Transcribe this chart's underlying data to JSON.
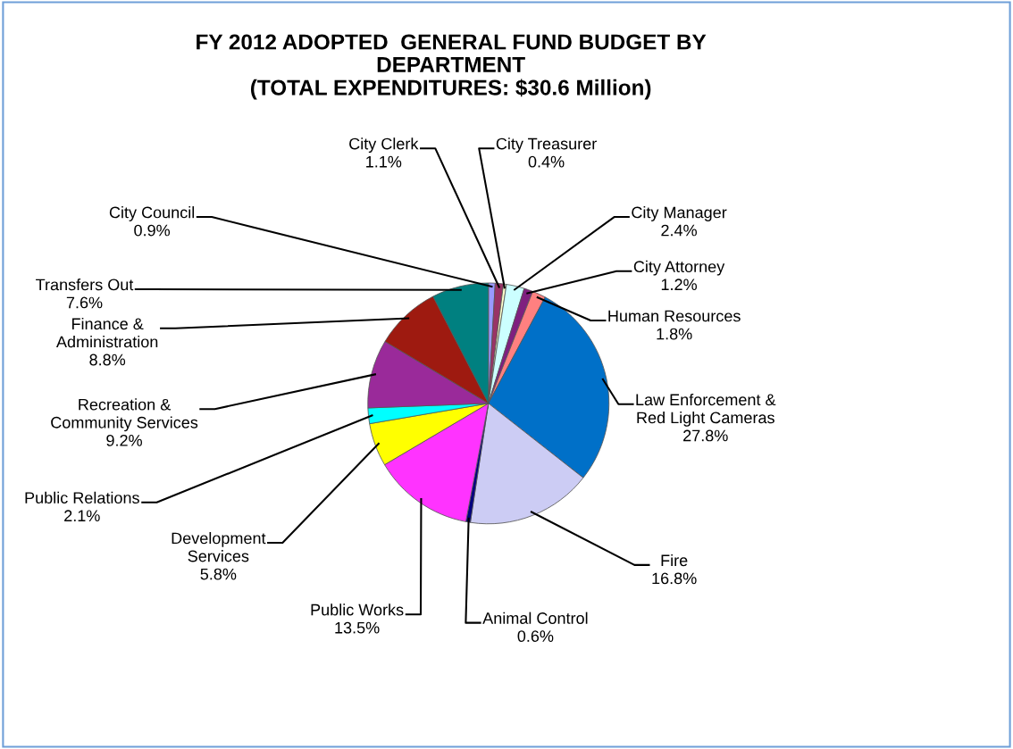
{
  "chart_data": {
    "type": "pie",
    "title": "FY 2012 ADOPTED  GENERAL FUND BUDGET BY\nDEPARTMENT\n(TOTAL EXPENDITURES: $30.6 Million)",
    "categories": [
      "City Council",
      "City Clerk",
      "City Treasurer",
      "City Manager",
      "City Attorney",
      "Human Resources",
      "Law Enforcement &\nRed Light Cameras",
      "Fire",
      "Animal Control",
      "Public Works",
      "Development\nServices",
      "Public Relations",
      "Recreation &\nCommunity Services",
      "Finance &\nAdministration",
      "Transfers Out"
    ],
    "values": [
      0.9,
      1.1,
      0.4,
      2.4,
      1.2,
      1.8,
      27.8,
      16.8,
      0.6,
      13.5,
      5.8,
      2.1,
      9.2,
      8.8,
      7.6
    ],
    "value_labels": [
      "0.9%",
      "1.1%",
      "0.4%",
      "2.4%",
      "1.2%",
      "1.8%",
      "27.8%",
      "16.8%",
      "0.6%",
      "13.5%",
      "5.8%",
      "2.1%",
      "9.2%",
      "8.8%",
      "7.6%"
    ],
    "colors": [
      "#9999ff",
      "#993366",
      "#ffffcc",
      "#ccffff",
      "#7f1f7f",
      "#ff8080",
      "#0070c8",
      "#ccccf4",
      "#000080",
      "#ff33ff",
      "#ffff00",
      "#00ffff",
      "#9a2a9a",
      "#9e1a10",
      "#008080"
    ]
  }
}
